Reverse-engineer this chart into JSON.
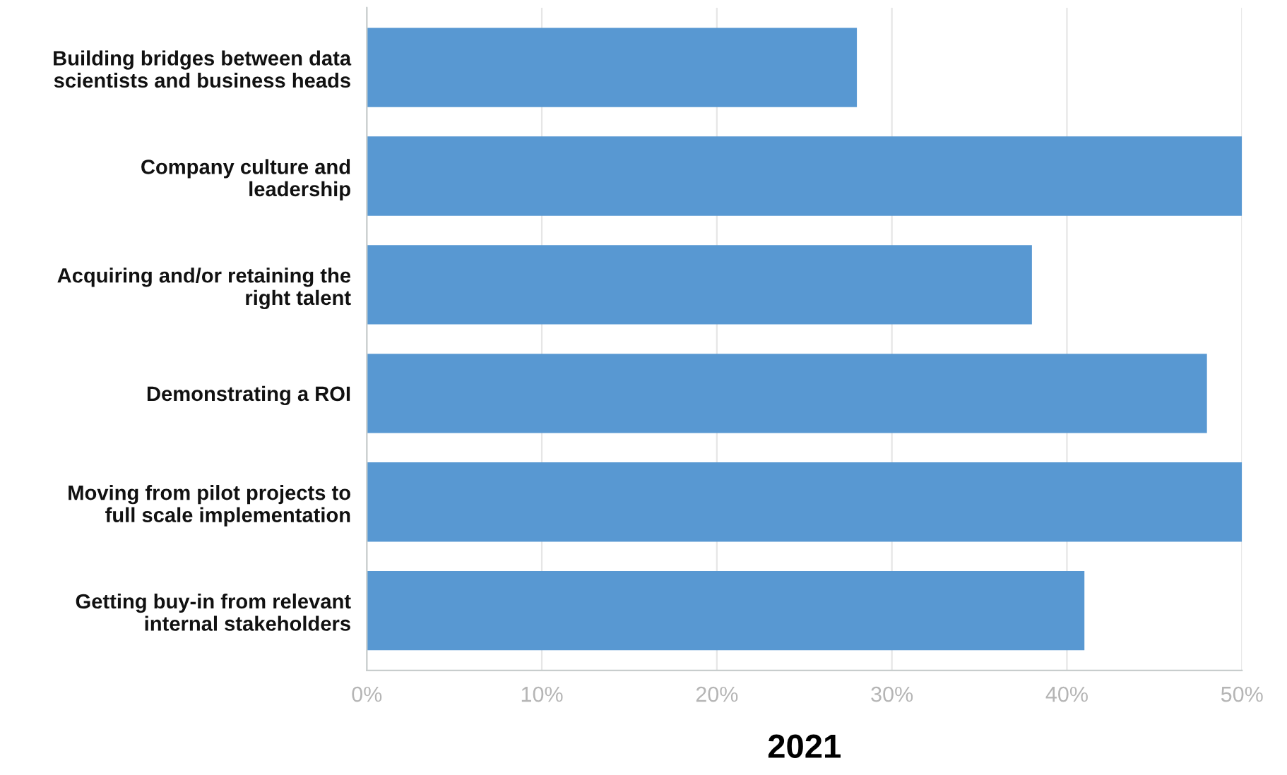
{
  "chart_data": {
    "type": "bar",
    "orientation": "horizontal",
    "xlabel": "2021",
    "categories": [
      "Building bridges between data\nscientists and business heads",
      "Company culture and\nleadership",
      "Acquiring and/or retaining the\nright talent",
      "Demonstrating a ROI",
      "Moving from pilot projects to\nfull scale implementation",
      "Getting buy-in from relevant\ninternal stakeholders"
    ],
    "values": [
      28,
      50,
      38,
      48,
      50,
      41
    ],
    "color": "#5898d2",
    "xlim": [
      0,
      50
    ],
    "xticks": [
      {
        "value": 0,
        "label": "0%"
      },
      {
        "value": 10,
        "label": "10%"
      },
      {
        "value": 20,
        "label": "20%"
      },
      {
        "value": 30,
        "label": "30%"
      },
      {
        "value": 40,
        "label": "40%"
      },
      {
        "value": 50,
        "label": "50%"
      }
    ],
    "grid": "x",
    "legend": false
  }
}
